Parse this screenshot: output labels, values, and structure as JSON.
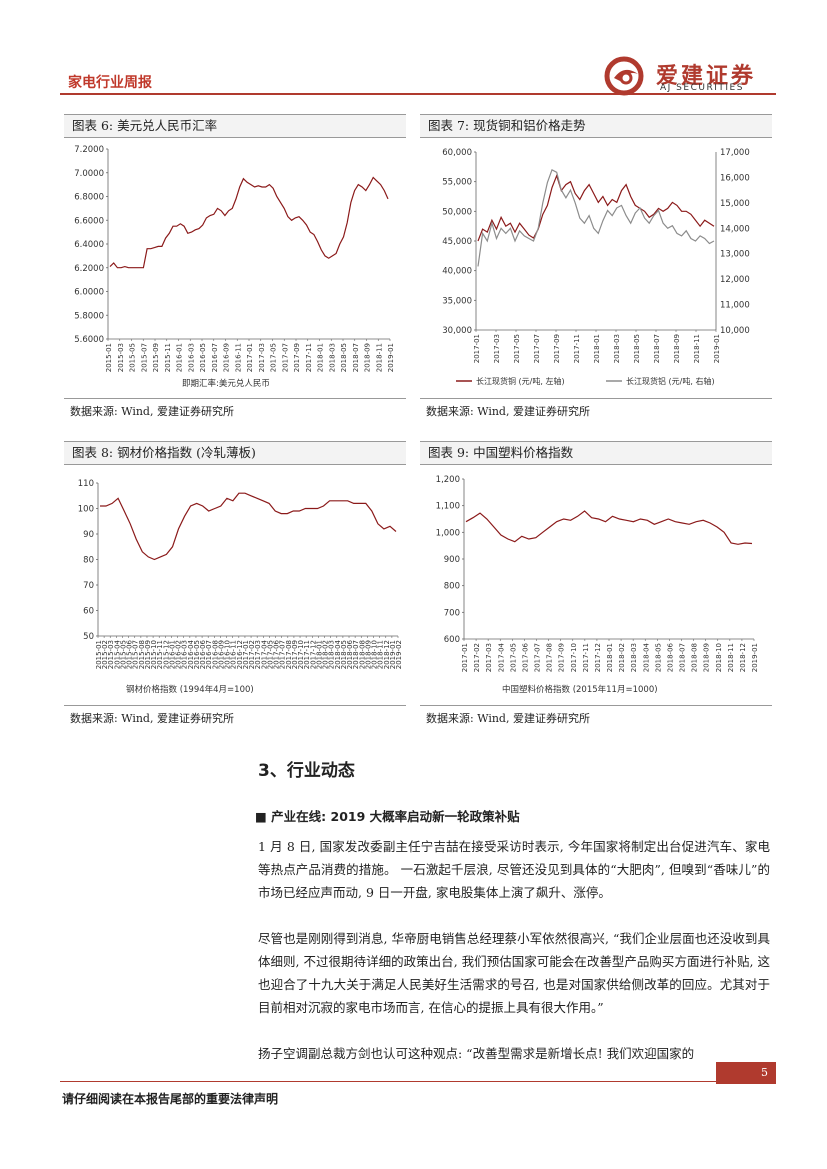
{
  "header": {
    "title": "家电行业周报",
    "logo_cn": "爱建证券",
    "logo_en": "AJ SECURITIES"
  },
  "colors": {
    "brand": "#b03a2e",
    "series_red": "#8b1a1a",
    "series_gray": "#8c8c8c"
  },
  "figures": [
    {
      "title": "图表 6: 美元兑人民币汇率",
      "source": "数据来源: Wind, 爱建证券研究所",
      "legend": "即期汇率:美元兑人民币",
      "chart_data": {
        "type": "line",
        "y_ticks": [
          "7.2000",
          "7.0000",
          "6.8000",
          "6.6000",
          "6.4000",
          "6.2000",
          "6.0000",
          "5.8000",
          "5.6000"
        ],
        "ylim": [
          5.6,
          7.2
        ],
        "x_ticks": [
          "2015-01",
          "2015-03",
          "2015-05",
          "2015-07",
          "2015-09",
          "2015-11",
          "2016-01",
          "2016-03",
          "2016-05",
          "2016-07",
          "2016-09",
          "2016-11",
          "2017-01",
          "2017-03",
          "2017-05",
          "2017-07",
          "2017-09",
          "2017-11",
          "2018-01",
          "2018-03",
          "2018-05",
          "2018-07",
          "2018-09",
          "2018-11",
          "2019-01"
        ],
        "series": [
          {
            "values": [
              6.21,
              6.24,
              6.2,
              6.2,
              6.21,
              6.2,
              6.2,
              6.2,
              6.2,
              6.2,
              6.36,
              6.36,
              6.37,
              6.38,
              6.38,
              6.45,
              6.49,
              6.55,
              6.55,
              6.57,
              6.55,
              6.49,
              6.5,
              6.52,
              6.53,
              6.56,
              6.62,
              6.64,
              6.65,
              6.7,
              6.68,
              6.64,
              6.68,
              6.7,
              6.78,
              6.88,
              6.95,
              6.92,
              6.9,
              6.88,
              6.89,
              6.88,
              6.88,
              6.9,
              6.87,
              6.8,
              6.75,
              6.7,
              6.63,
              6.6,
              6.62,
              6.63,
              6.6,
              6.56,
              6.5,
              6.48,
              6.42,
              6.35,
              6.3,
              6.28,
              6.3,
              6.32,
              6.4,
              6.46,
              6.58,
              6.75,
              6.85,
              6.9,
              6.88,
              6.85,
              6.9,
              6.96,
              6.93,
              6.9,
              6.85,
              6.78
            ]
          }
        ]
      }
    },
    {
      "title": "图表 7: 现货铜和铝价格走势",
      "source": "数据来源: Wind, 爱建证券研究所",
      "legend": [
        "长江现货铜 (元/吨, 左轴)",
        "长江现货铝 (元/吨, 右轴)"
      ],
      "chart_data": {
        "type": "line",
        "y_ticks_left": [
          "60,000",
          "55,000",
          "50,000",
          "45,000",
          "40,000",
          "35,000",
          "30,000"
        ],
        "y_ticks_right": [
          "17,000",
          "16,000",
          "15,000",
          "14,000",
          "13,000",
          "12,000",
          "11,000",
          "10,000"
        ],
        "ylim_left": [
          30000,
          60000
        ],
        "ylim_right": [
          10000,
          17000
        ],
        "x_ticks": [
          "2017-01",
          "2017-03",
          "2017-05",
          "2017-07",
          "2017-09",
          "2017-11",
          "2018-01",
          "2018-03",
          "2018-05",
          "2018-07",
          "2018-09",
          "2018-11",
          "2019-01"
        ],
        "series": [
          {
            "name": "长江现货铜 (元/吨, 左轴)",
            "axis": "left",
            "values": [
              45000,
              47000,
              46500,
              48500,
              47000,
              49000,
              47500,
              48000,
              46500,
              48000,
              47000,
              46000,
              45500,
              47000,
              49500,
              51000,
              54000,
              56000,
              53500,
              54500,
              55000,
              53000,
              52000,
              53500,
              54500,
              53000,
              51500,
              52500,
              51000,
              52000,
              51500,
              53500,
              54500,
              52500,
              51000,
              50500,
              50000,
              49000,
              49500,
              50500,
              50000,
              50500,
              51500,
              51000,
              50000,
              50000,
              49500,
              48500,
              47500,
              48500,
              48000,
              47500
            ]
          },
          {
            "name": "长江现货铝 (元/吨, 右轴)",
            "axis": "right",
            "values": [
              12500,
              13800,
              13500,
              14200,
              13600,
              14000,
              13800,
              14000,
              13500,
              13900,
              13700,
              13600,
              13500,
              14000,
              15000,
              15800,
              16300,
              16200,
              15500,
              15200,
              15500,
              15000,
              14400,
              14200,
              14500,
              14000,
              13800,
              14300,
              14700,
              14500,
              14800,
              14900,
              14500,
              14200,
              14600,
              14800,
              14400,
              14200,
              14500,
              14700,
              14200,
              14000,
              14100,
              13800,
              13700,
              13900,
              13600,
              13500,
              13700,
              13600,
              13400,
              13500
            ]
          }
        ]
      }
    },
    {
      "title": "图表 8: 钢材价格指数 (冷轧薄板)",
      "source": "数据来源: Wind, 爱建证券研究所",
      "legend": "钢材价格指数 (1994年4月=100)",
      "chart_data": {
        "type": "line",
        "y_ticks": [
          "110",
          "100",
          "90",
          "80",
          "70",
          "60",
          "50"
        ],
        "ylim": [
          50,
          110
        ],
        "x_ticks": [
          "2015-01",
          "2015-02",
          "2015-03",
          "2015-04",
          "2015-05",
          "2015-06",
          "2015-07",
          "2015-08",
          "2015-09",
          "2015-10",
          "2015-11",
          "2015-12",
          "2016-01",
          "2016-02",
          "2016-03",
          "2016-04",
          "2016-05",
          "2016-06",
          "2016-07",
          "2016-08",
          "2016-09",
          "2016-10",
          "2016-11",
          "2016-12",
          "2017-01",
          "2017-02",
          "2017-03",
          "2017-04",
          "2017-05",
          "2017-06",
          "2017-07",
          "2017-08",
          "2017-09",
          "2017-10",
          "2017-11",
          "2017-12",
          "2018-01",
          "2018-02",
          "2018-03",
          "2018-04",
          "2018-05",
          "2018-06",
          "2018-07",
          "2018-08",
          "2018-09",
          "2018-10",
          "2018-11",
          "2018-12",
          "2019-01",
          "2019-02"
        ],
        "series": [
          {
            "values": [
              101,
              101,
              102,
              104,
              99,
              94,
              88,
              83,
              81,
              80,
              81,
              82,
              85,
              92,
              97,
              101,
              102,
              101,
              99,
              100,
              101,
              104,
              103,
              106,
              106,
              105,
              104,
              103,
              102,
              99,
              98,
              98,
              99,
              99,
              100,
              100,
              100,
              101,
              103,
              103,
              103,
              103,
              102,
              102,
              102,
              99,
              94,
              92,
              93,
              91
            ]
          }
        ]
      }
    },
    {
      "title": "图表 9: 中国塑料价格指数",
      "source": "数据来源: Wind, 爱建证券研究所",
      "legend": "中国塑料价格指数 (2015年11月=1000)",
      "chart_data": {
        "type": "line",
        "y_ticks": [
          "1,200",
          "1,100",
          "1,000",
          "900",
          "800",
          "700",
          "600"
        ],
        "ylim": [
          600,
          1200
        ],
        "x_ticks": [
          "2017-01",
          "2017-02",
          "2017-03",
          "2017-04",
          "2017-05",
          "2017-06",
          "2017-07",
          "2017-08",
          "2017-09",
          "2017-10",
          "2017-11",
          "2017-12",
          "2018-01",
          "2018-02",
          "2018-03",
          "2018-04",
          "2018-05",
          "2018-06",
          "2018-07",
          "2018-08",
          "2018-09",
          "2018-10",
          "2018-11",
          "2018-12",
          "2019-01"
        ],
        "series": [
          {
            "values": [
              1040,
              1055,
              1072,
              1050,
              1020,
              990,
              975,
              965,
              985,
              975,
              980,
              1000,
              1020,
              1040,
              1050,
              1045,
              1060,
              1080,
              1055,
              1050,
              1040,
              1060,
              1050,
              1045,
              1040,
              1050,
              1045,
              1030,
              1040,
              1050,
              1040,
              1035,
              1030,
              1040,
              1045,
              1035,
              1020,
              1000,
              960,
              955,
              960,
              958
            ]
          }
        ]
      }
    }
  ],
  "section": {
    "heading": "3、行业动态"
  },
  "news": {
    "bullet": "■",
    "headline": "产业在线: 2019 大概率启动新一轮政策补贴",
    "paragraphs": [
      "1 月 8 日, 国家发改委副主任宁吉喆在接受采访时表示, 今年国家将制定出台促进汽车、家电等热点产品消费的措施。 一石激起千层浪, 尽管还没见到具体的“大肥肉”, 但嗅到“香味儿”的市场已经应声而动, 9 日一开盘, 家电股集体上演了飙升、涨停。",
      "尽管也是刚刚得到消息, 华帝厨电销售总经理蔡小军依然很高兴, “我们企业层面也还没收到具体细则, 不过很期待详细的政策出台, 我们预估国家可能会在改善型产品购买方面进行补贴, 这也迎合了十九大关于满足人民美好生活需求的号召, 也是对国家供给侧改革的回应。尤其对于目前相对沉寂的家电市场而言, 在信心的提振上具有很大作用。”",
      "扬子空调副总裁方剑也认可这种观点: “改善型需求是新增长点! 我们欢迎国家的"
    ]
  },
  "footer": {
    "disclaimer": "请仔细阅读在本报告尾部的重要法律声明",
    "page": "5"
  }
}
